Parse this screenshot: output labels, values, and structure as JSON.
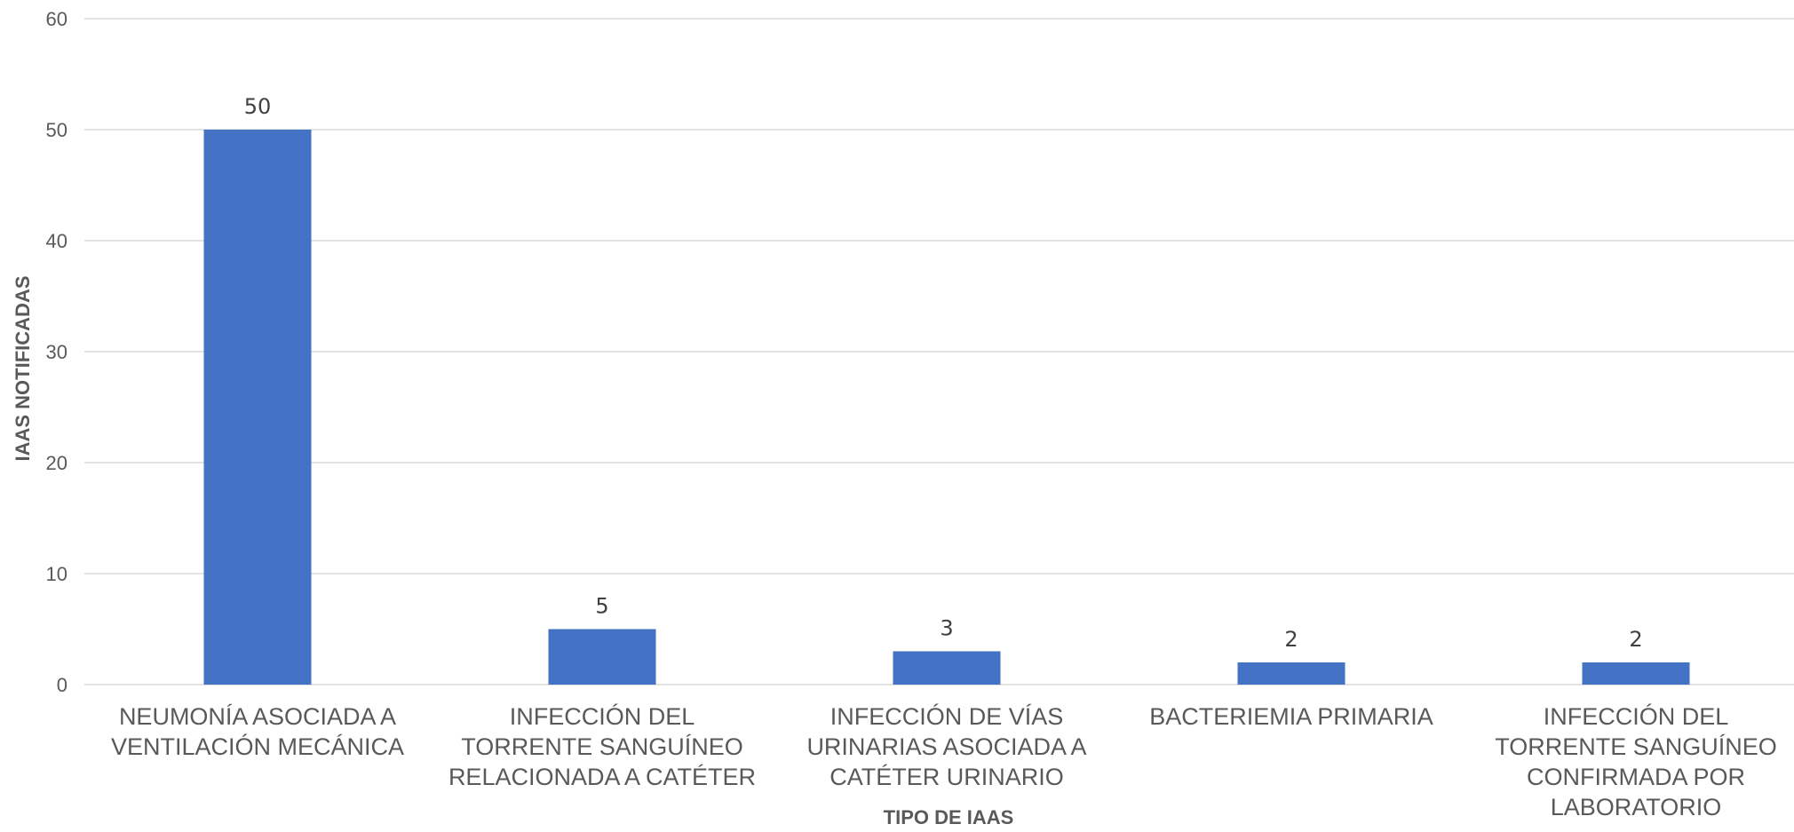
{
  "chart_data": {
    "type": "bar",
    "title": "",
    "xlabel": "TIPO DE IAAS",
    "ylabel": "IAAS NOTIFICADAS",
    "categories": [
      [
        "NEUMONÍA ASOCIADA A",
        "VENTILACIÓN MECÁNICA"
      ],
      [
        "INFECCIÓN DEL",
        "TORRENTE SANGUÍNEO",
        "RELACIONADA A CATÉTER"
      ],
      [
        "INFECCIÓN DE VÍAS",
        "URINARIAS ASOCIADA A",
        "CATÉTER URINARIO"
      ],
      [
        "BACTERIEMIA PRIMARIA"
      ],
      [
        "INFECCIÓN DEL",
        "TORRENTE SANGUÍNEO",
        "CONFIRMADA POR",
        "LABORATORIO"
      ]
    ],
    "values": [
      50,
      5,
      3,
      2,
      2
    ],
    "ylim": [
      0,
      60
    ],
    "yticks": [
      0,
      10,
      20,
      30,
      40,
      50,
      60
    ],
    "grid": true,
    "legend": "none",
    "bar_color": "#4472c4"
  }
}
